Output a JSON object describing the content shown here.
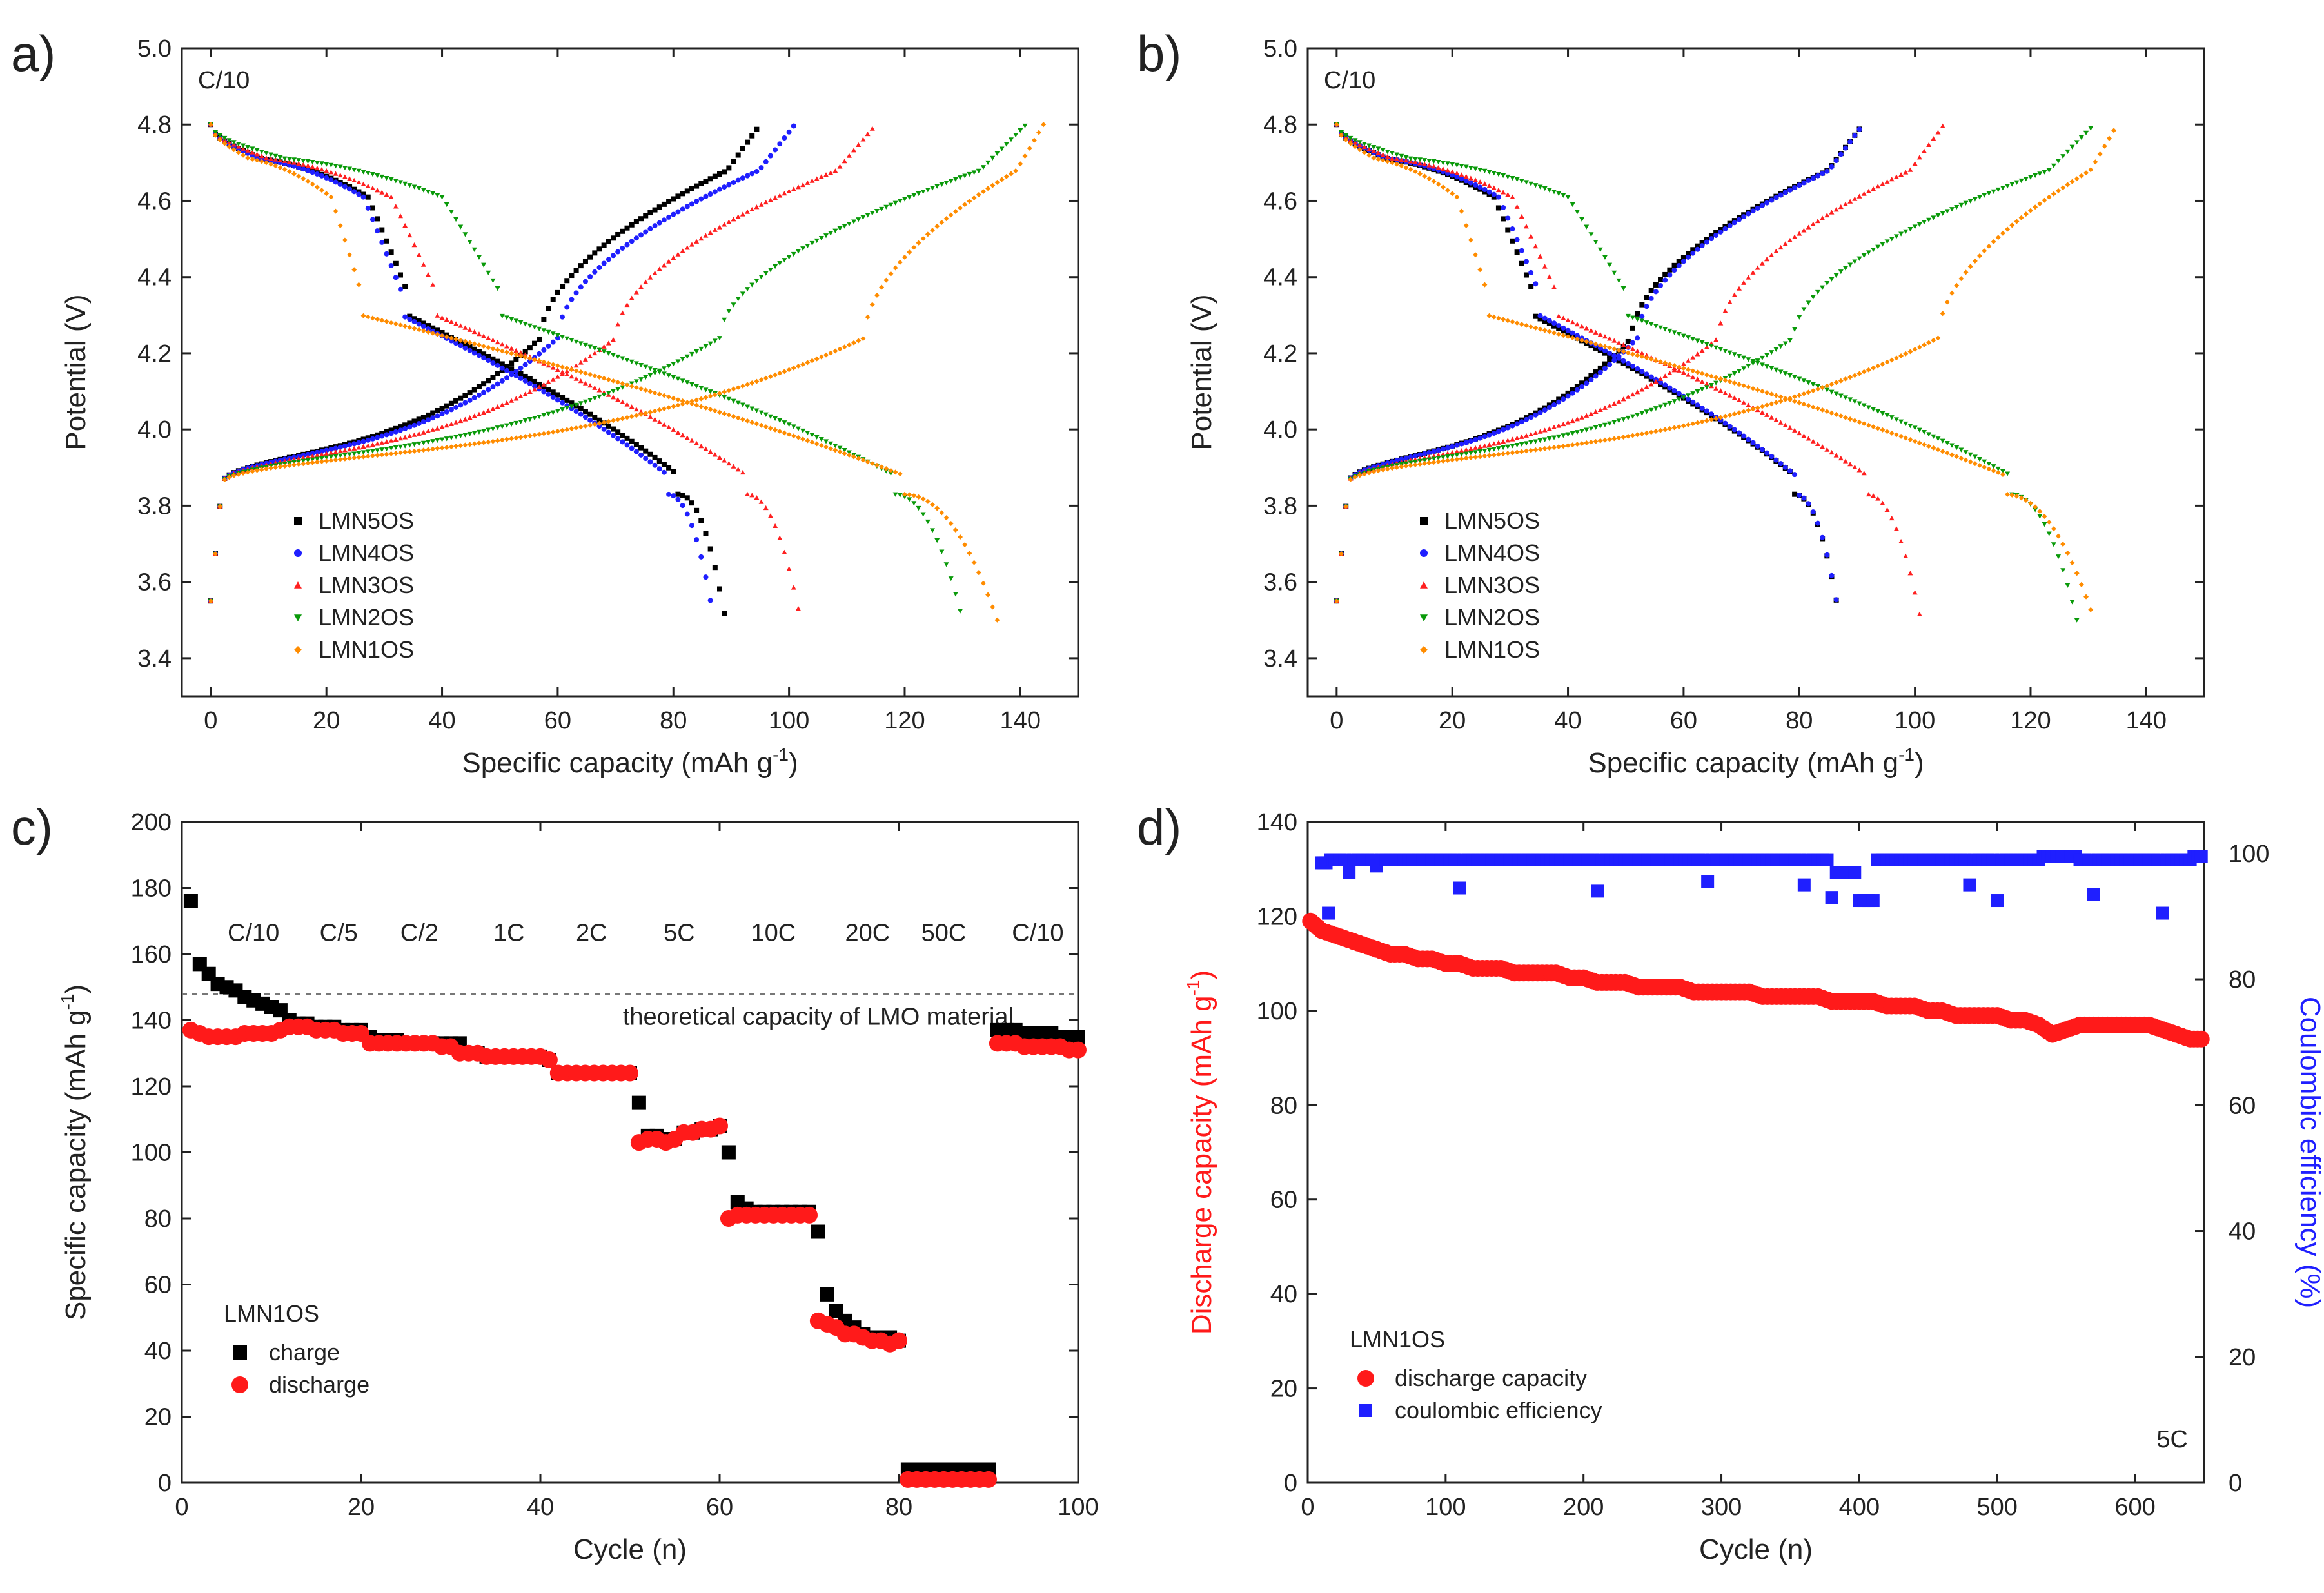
{
  "chart_data": [
    {
      "id": "a",
      "type": "scatter",
      "panel_label": "a)",
      "annotation": "C/10",
      "xlabel": "Specific capacity (mAh g",
      "xlabel_sup": "-1",
      "xlabel_close": ")",
      "ylabel": "Potential (V)",
      "xlim": [
        -5,
        150
      ],
      "ylim": [
        3.3,
        5.0
      ],
      "xticks": [
        0,
        20,
        40,
        60,
        80,
        100,
        120,
        140
      ],
      "yticks": [
        3.4,
        3.6,
        3.8,
        4.0,
        4.2,
        4.4,
        4.6,
        4.8,
        5.0
      ],
      "ytick_labels": [
        "3.4",
        "3.6",
        "3.8",
        "4.0",
        "4.2",
        "4.4",
        "4.6",
        "4.8",
        "5.0"
      ],
      "legend": [
        "LMN5OS",
        "LMN4OS",
        "LMN3OS",
        "LMN2OS",
        "LMN1OS"
      ],
      "series": [
        {
          "name": "LMN5OS",
          "color": "#000000",
          "marker": "square",
          "charge_cap": 95,
          "discharge_cap": 89,
          "disc_plateau_end": 34,
          "charge_plateau_start": 57
        },
        {
          "name": "LMN4OS",
          "color": "#1f1fff",
          "marker": "circle",
          "charge_cap": 101,
          "discharge_cap": 87,
          "disc_plateau_end": 33,
          "charge_plateau_start": 60
        },
        {
          "name": "LMN3OS",
          "color": "#ff2020",
          "marker": "triangle-up",
          "charge_cap": 115,
          "discharge_cap": 102,
          "disc_plateau_end": 39,
          "charge_plateau_start": 70
        },
        {
          "name": "LMN2OS",
          "color": "#0a9a0a",
          "marker": "triangle-down",
          "charge_cap": 141,
          "discharge_cap": 130,
          "disc_plateau_end": 50,
          "charge_plateau_start": 88
        },
        {
          "name": "LMN1OS",
          "color": "#ff8c00",
          "marker": "diamond",
          "charge_cap": 144,
          "discharge_cap": 136,
          "disc_plateau_end": 26,
          "charge_plateau_start": 113
        }
      ]
    },
    {
      "id": "b",
      "type": "scatter",
      "panel_label": "b)",
      "annotation": "C/10",
      "xlabel": "Specific capacity (mAh g",
      "xlabel_sup": "-1",
      "xlabel_close": ")",
      "ylabel": "Potential (V)",
      "xlim": [
        -5,
        150
      ],
      "ylim": [
        3.3,
        5.0
      ],
      "xticks": [
        0,
        20,
        40,
        60,
        80,
        100,
        120,
        140
      ],
      "yticks": [
        3.4,
        3.6,
        3.8,
        4.0,
        4.2,
        4.4,
        4.6,
        4.8,
        5.0
      ],
      "ytick_labels": [
        "3.4",
        "3.6",
        "3.8",
        "4.0",
        "4.2",
        "4.4",
        "4.6",
        "4.8",
        "5.0"
      ],
      "legend": [
        "LMN5OS",
        "LMN4OS",
        "LMN3OS",
        "LMN2OS",
        "LMN1OS"
      ],
      "series": [
        {
          "name": "LMN5OS",
          "color": "#000000",
          "marker": "square",
          "charge_cap": 91,
          "discharge_cap": 87,
          "disc_plateau_end": 34,
          "charge_plateau_start": 51
        },
        {
          "name": "LMN4OS",
          "color": "#1f1fff",
          "marker": "circle",
          "charge_cap": 91,
          "discharge_cap": 87,
          "disc_plateau_end": 35,
          "charge_plateau_start": 52
        },
        {
          "name": "LMN3OS",
          "color": "#ff2020",
          "marker": "triangle-up",
          "charge_cap": 105,
          "discharge_cap": 101,
          "disc_plateau_end": 38,
          "charge_plateau_start": 66
        },
        {
          "name": "LMN2OS",
          "color": "#0a9a0a",
          "marker": "triangle-down",
          "charge_cap": 131,
          "discharge_cap": 128,
          "disc_plateau_end": 50,
          "charge_plateau_start": 79
        },
        {
          "name": "LMN1OS",
          "color": "#ff8c00",
          "marker": "diamond",
          "charge_cap": 135,
          "discharge_cap": 131,
          "disc_plateau_end": 26,
          "charge_plateau_start": 104
        }
      ]
    },
    {
      "id": "c",
      "type": "scatter",
      "panel_label": "c)",
      "xlabel": "Cycle (n)",
      "ylabel": "Specific capacity (mAh g",
      "ylabel_sup": "-1",
      "ylabel_close": ")",
      "xlim": [
        0,
        100
      ],
      "ylim": [
        0,
        200
      ],
      "xticks": [
        0,
        20,
        40,
        60,
        80,
        100
      ],
      "yticks": [
        0,
        20,
        40,
        60,
        80,
        100,
        120,
        140,
        160,
        180,
        200
      ],
      "rate_labels": [
        {
          "text": "C/10",
          "x": 8
        },
        {
          "text": "C/5",
          "x": 17.5
        },
        {
          "text": "C/2",
          "x": 26.5
        },
        {
          "text": "1C",
          "x": 36.5
        },
        {
          "text": "2C",
          "x": 45.7
        },
        {
          "text": "5C",
          "x": 55.5
        },
        {
          "text": "10C",
          "x": 66
        },
        {
          "text": "20C",
          "x": 76.5
        },
        {
          "text": "50C",
          "x": 85
        },
        {
          "text": "C/10",
          "x": 95.5
        }
      ],
      "rate_label_y": 164,
      "theory_line": {
        "value": 148,
        "text": "theoretical capacity of LMO material",
        "text_x": 71
      },
      "legend_title": "LMN1OS",
      "legend": [
        "charge",
        "discharge"
      ],
      "series": [
        {
          "name": "charge",
          "color": "#000000",
          "marker": "square",
          "x": [
            1,
            2,
            3,
            4,
            5,
            6,
            7,
            8,
            9,
            10,
            11,
            12,
            13,
            14,
            15,
            16,
            17,
            18,
            19,
            20,
            21,
            22,
            23,
            24,
            25,
            26,
            27,
            28,
            29,
            30,
            31,
            32,
            33,
            34,
            35,
            36,
            37,
            38,
            39,
            40,
            41,
            42,
            43,
            44,
            45,
            46,
            47,
            48,
            49,
            50,
            51,
            52,
            53,
            54,
            55,
            56,
            57,
            58,
            59,
            60,
            61,
            62,
            63,
            64,
            65,
            66,
            67,
            68,
            69,
            70,
            71,
            72,
            73,
            74,
            75,
            76,
            77,
            78,
            79,
            80,
            81,
            82,
            83,
            84,
            85,
            86,
            87,
            88,
            89,
            90,
            91,
            92,
            93,
            94,
            95,
            96,
            97,
            98,
            99,
            100
          ],
          "y": [
            176,
            157,
            154,
            151,
            150,
            149,
            147,
            146,
            145,
            144,
            143,
            140,
            139,
            139,
            138,
            138,
            138,
            137,
            137,
            137,
            135,
            134,
            134,
            134,
            133,
            133,
            133,
            133,
            133,
            133,
            133,
            130,
            130,
            129,
            129,
            129,
            129,
            129,
            129,
            129,
            128,
            124,
            124,
            124,
            124,
            124,
            124,
            124,
            124,
            124,
            115,
            105,
            105,
            104,
            104,
            106,
            106,
            107,
            107,
            108,
            100,
            85,
            83,
            82,
            82,
            82,
            82,
            82,
            82,
            82,
            76,
            57,
            52,
            49,
            47,
            45,
            44,
            44,
            44,
            43,
            4,
            4,
            4,
            4,
            4,
            4,
            4,
            4,
            4,
            4,
            137,
            137,
            137,
            136,
            136,
            136,
            136,
            135,
            135,
            135
          ]
        },
        {
          "name": "discharge",
          "color": "#ff1a1a",
          "marker": "circle",
          "x": [
            1,
            2,
            3,
            4,
            5,
            6,
            7,
            8,
            9,
            10,
            11,
            12,
            13,
            14,
            15,
            16,
            17,
            18,
            19,
            20,
            21,
            22,
            23,
            24,
            25,
            26,
            27,
            28,
            29,
            30,
            31,
            32,
            33,
            34,
            35,
            36,
            37,
            38,
            39,
            40,
            41,
            42,
            43,
            44,
            45,
            46,
            47,
            48,
            49,
            50,
            51,
            52,
            53,
            54,
            55,
            56,
            57,
            58,
            59,
            60,
            61,
            62,
            63,
            64,
            65,
            66,
            67,
            68,
            69,
            70,
            71,
            72,
            73,
            74,
            75,
            76,
            77,
            78,
            79,
            80,
            81,
            82,
            83,
            84,
            85,
            86,
            87,
            88,
            89,
            90,
            91,
            92,
            93,
            94,
            95,
            96,
            97,
            98,
            99,
            100
          ],
          "y": [
            137,
            136,
            135,
            135,
            135,
            135,
            136,
            136,
            136,
            136,
            137,
            138,
            138,
            138,
            137,
            137,
            137,
            136,
            136,
            136,
            133,
            133,
            133,
            133,
            133,
            133,
            133,
            133,
            132,
            132,
            130,
            130,
            130,
            129,
            129,
            129,
            129,
            129,
            129,
            129,
            128,
            124,
            124,
            124,
            124,
            124,
            124,
            124,
            124,
            124,
            103,
            104,
            104,
            103,
            104,
            106,
            106,
            107,
            107,
            108,
            80,
            81,
            81,
            81,
            81,
            81,
            81,
            81,
            81,
            81,
            49,
            48,
            47,
            45,
            45,
            44,
            43,
            43,
            42,
            43,
            1,
            1,
            1,
            1,
            1,
            1,
            1,
            1,
            1,
            1,
            133,
            133,
            133,
            132,
            132,
            132,
            132,
            132,
            131,
            131
          ]
        }
      ]
    },
    {
      "id": "d",
      "type": "scatter",
      "panel_label": "d)",
      "annotation": "5C",
      "xlabel": "Cycle (n)",
      "ylabel": "Discharge capacity (mAh g",
      "ylabel_sup": "-1",
      "ylabel_close": ")",
      "y2label": "Coulombic efficiency (%)",
      "xlim": [
        0,
        650
      ],
      "ylim": [
        0,
        140
      ],
      "y2lim": [
        0,
        105
      ],
      "xticks": [
        0,
        100,
        200,
        300,
        400,
        500,
        600
      ],
      "yticks": [
        0,
        20,
        40,
        60,
        80,
        100,
        120,
        140
      ],
      "y2ticks": [
        0,
        20,
        40,
        60,
        80,
        100
      ],
      "legend_title": "LMN1OS",
      "legend": [
        "discharge capacity",
        "coulombic efficiency"
      ],
      "series": [
        {
          "name": "discharge capacity",
          "color": "#ff1a1a",
          "marker": "circle",
          "axis": "left",
          "x": [
            2,
            10,
            20,
            30,
            40,
            50,
            60,
            70,
            80,
            90,
            100,
            110,
            120,
            130,
            140,
            150,
            160,
            170,
            180,
            190,
            200,
            210,
            220,
            230,
            240,
            250,
            260,
            270,
            280,
            290,
            300,
            310,
            320,
            330,
            340,
            350,
            360,
            370,
            380,
            390,
            400,
            410,
            420,
            430,
            440,
            450,
            460,
            470,
            480,
            490,
            500,
            510,
            520,
            530,
            540,
            550,
            560,
            570,
            580,
            590,
            600,
            610,
            620,
            630,
            640,
            648
          ],
          "y": [
            119,
            117,
            116,
            115,
            114,
            113,
            112,
            112,
            111,
            111,
            110,
            110,
            109,
            109,
            109,
            108,
            108,
            108,
            108,
            107,
            107,
            106,
            106,
            106,
            105,
            105,
            105,
            105,
            104,
            104,
            104,
            104,
            104,
            103,
            103,
            103,
            103,
            103,
            102,
            102,
            102,
            102,
            101,
            101,
            101,
            100,
            100,
            99,
            99,
            99,
            99,
            98,
            98,
            97,
            95,
            96,
            97,
            97,
            97,
            97,
            97,
            97,
            96,
            95,
            94,
            94
          ]
        },
        {
          "name": "coulombic efficiency",
          "color": "#1f1fff",
          "marker": "square",
          "axis": "right",
          "x": [
            10,
            15,
            20,
            30,
            40,
            50,
            60,
            70,
            80,
            90,
            100,
            110,
            120,
            130,
            140,
            150,
            160,
            170,
            180,
            190,
            200,
            210,
            220,
            230,
            240,
            250,
            260,
            270,
            280,
            290,
            300,
            310,
            320,
            330,
            340,
            350,
            360,
            370,
            380,
            390,
            400,
            410,
            420,
            430,
            440,
            450,
            460,
            470,
            480,
            490,
            500,
            510,
            520,
            530,
            540,
            550,
            560,
            570,
            580,
            590,
            600,
            610,
            620,
            630,
            640,
            648
          ],
          "y": [
            98.5,
            90.5,
            99,
            97,
            99,
            98,
            99,
            99,
            99,
            99,
            99,
            94.5,
            99,
            99,
            99,
            99,
            99,
            99,
            99,
            99,
            99,
            94,
            99,
            99,
            99,
            99,
            99,
            99,
            99,
            95.5,
            99,
            99,
            99,
            99,
            99,
            99,
            95,
            99,
            93,
            97,
            92.5,
            92.5,
            99,
            99,
            99,
            99,
            99,
            99,
            95,
            99,
            92.5,
            99,
            99,
            99,
            99.5,
            99.5,
            99,
            93.5,
            99,
            99,
            99,
            99,
            90.5,
            99,
            99,
            99.5
          ]
        }
      ]
    }
  ]
}
